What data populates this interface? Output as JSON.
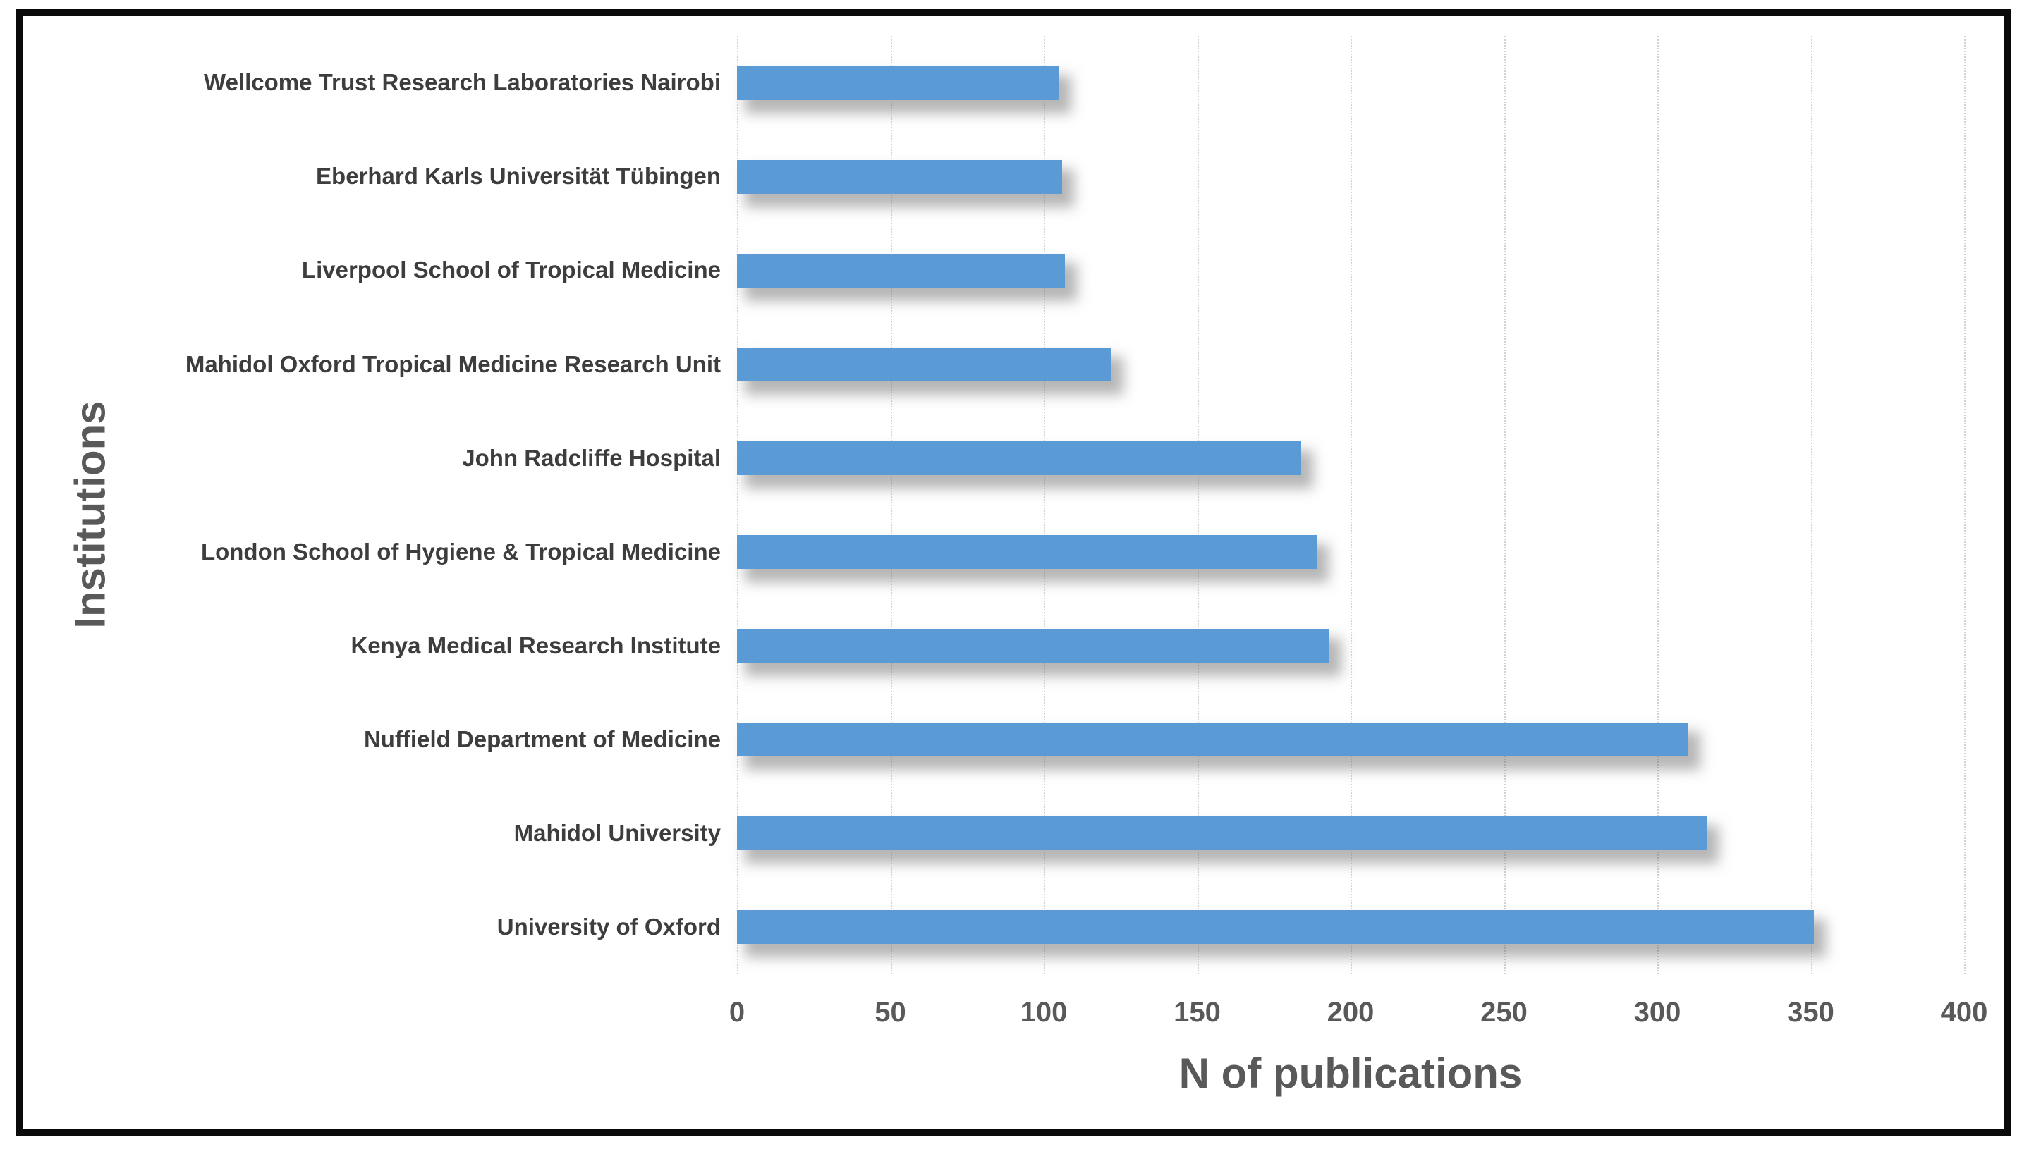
{
  "chart_data": {
    "type": "bar",
    "orientation": "horizontal",
    "title": "",
    "xlabel": "N of publications",
    "ylabel": "Institutions",
    "xlim": [
      0,
      400
    ],
    "xticks": [
      0,
      50,
      100,
      150,
      200,
      250,
      300,
      350,
      400
    ],
    "grid": true,
    "legend": false,
    "categories": [
      "Wellcome Trust Research Laboratories Nairobi",
      "Eberhard Karls Universität Tübingen",
      "Liverpool School of Tropical Medicine",
      "Mahidol Oxford Tropical Medicine Research Unit",
      "John Radcliffe Hospital",
      "London School of Hygiene & Tropical Medicine",
      "Kenya Medical Research Institute",
      "Nuffield Department of Medicine",
      "Mahidol University",
      "University of Oxford"
    ],
    "values": [
      105,
      106,
      107,
      122,
      184,
      189,
      193,
      310,
      316,
      351
    ],
    "bar_color": "#5B9BD5",
    "gridline_color": "#d2d2d2",
    "category_label_color": "#3d3d3d",
    "tick_label_color": "#595959",
    "axis_title_color": "#595959",
    "frame_border_color": "#0a0a0a",
    "background_color": "#ffffff"
  }
}
